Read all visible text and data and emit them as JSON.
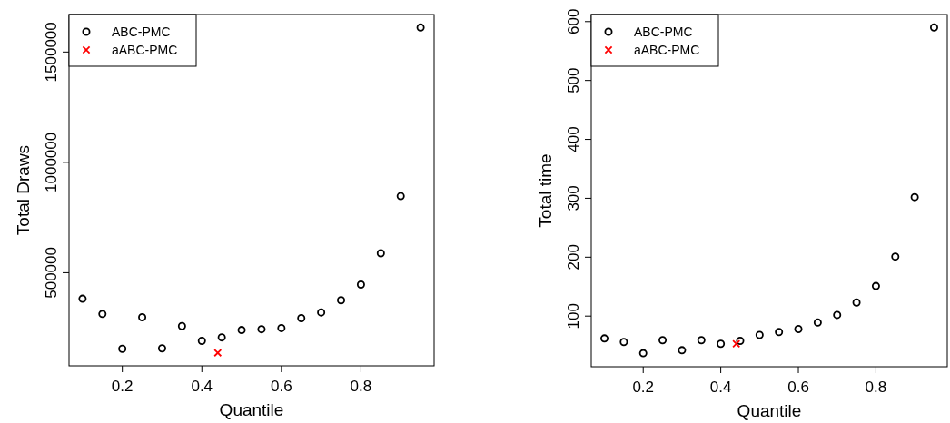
{
  "chart_data": [
    {
      "type": "scatter",
      "xlabel": "Quantile",
      "ylabel": "Total Draws",
      "xlim": [
        0.066,
        0.984
      ],
      "ylim": [
        78000,
        1670000
      ],
      "xticks": [
        0.2,
        0.4,
        0.6,
        0.8
      ],
      "yticks": [
        500000,
        1000000,
        1500000
      ],
      "legend": "top left",
      "series": [
        {
          "name": "ABC-PMC",
          "color": "#000000",
          "marker": "circle",
          "x": [
            0.1,
            0.15,
            0.2,
            0.25,
            0.3,
            0.35,
            0.4,
            0.45,
            0.5,
            0.55,
            0.6,
            0.65,
            0.7,
            0.75,
            0.8,
            0.85,
            0.9,
            0.95
          ],
          "values": [
            382000,
            313000,
            155000,
            298000,
            157000,
            258000,
            191000,
            207000,
            240000,
            244000,
            249000,
            294000,
            320000,
            375000,
            446000,
            588000,
            847000,
            1611000
          ]
        },
        {
          "name": "aABC-PMC",
          "color": "#ff0000",
          "marker": "cross",
          "x": [
            0.44
          ],
          "values": [
            137000
          ]
        }
      ]
    },
    {
      "type": "scatter",
      "xlabel": "Quantile",
      "ylabel": "Total time",
      "xlim": [
        0.066,
        0.984
      ],
      "ylim": [
        14,
        612
      ],
      "xticks": [
        0.2,
        0.4,
        0.6,
        0.8
      ],
      "yticks": [
        100,
        200,
        300,
        400,
        500,
        600
      ],
      "legend": "top left",
      "series": [
        {
          "name": "ABC-PMC",
          "color": "#000000",
          "marker": "circle",
          "x": [
            0.1,
            0.15,
            0.2,
            0.25,
            0.3,
            0.35,
            0.4,
            0.45,
            0.5,
            0.55,
            0.6,
            0.65,
            0.7,
            0.75,
            0.8,
            0.85,
            0.9,
            0.95
          ],
          "values": [
            62,
            56,
            37,
            59,
            42,
            59,
            53,
            58,
            68,
            73,
            78,
            89,
            102,
            123,
            151,
            201,
            302,
            590
          ]
        },
        {
          "name": "aABC-PMC",
          "color": "#ff0000",
          "marker": "cross",
          "x": [
            0.44
          ],
          "values": [
            53
          ]
        }
      ]
    }
  ]
}
